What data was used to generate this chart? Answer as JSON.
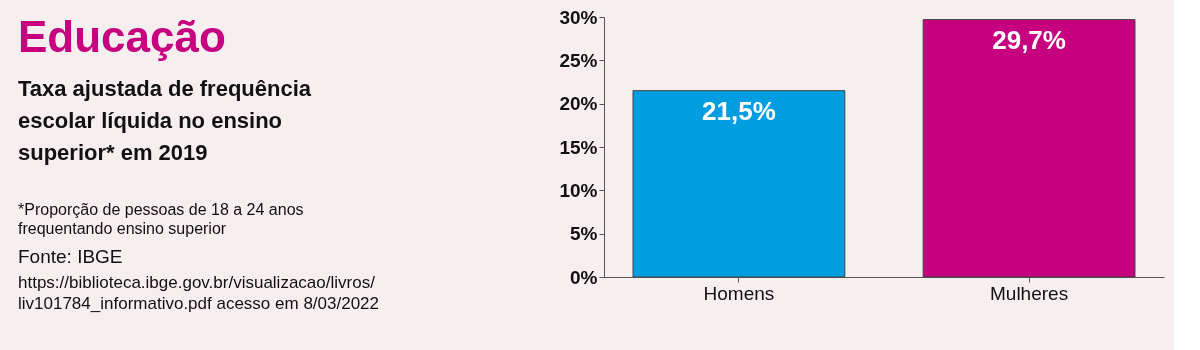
{
  "chart_data": {
    "type": "bar",
    "title": "Educação",
    "subtitle": "Taxa ajustada de frequência escolar líquida no ensino superior* em 2019",
    "annotations": [
      "*Proporção de pessoas de 18 a 24 anos frequentando ensino superior",
      "Fonte: IBGE",
      "https://biblioteca.ibge.gov.br/visualizacao/livros/liv101784_informativo.pdf acesso em 8/03/2022"
    ],
    "categories": [
      "Homens",
      "Mulheres"
    ],
    "values": [
      21.5,
      29.7
    ],
    "colors": [
      "#009ee0",
      "#c6007e"
    ],
    "value_labels": [
      "21,5%",
      "29,7%"
    ],
    "ylim": [
      0,
      30
    ],
    "yticks": [
      {
        "value": 0,
        "label": "0%"
      },
      {
        "value": 5,
        "label": "5%"
      },
      {
        "value": 10,
        "label": "10%"
      },
      {
        "value": 15,
        "label": "15%"
      },
      {
        "value": 20,
        "label": "20%"
      },
      {
        "value": 25,
        "label": "25%"
      },
      {
        "value": 30,
        "label": "30%"
      }
    ],
    "grid": false,
    "legend": false
  }
}
